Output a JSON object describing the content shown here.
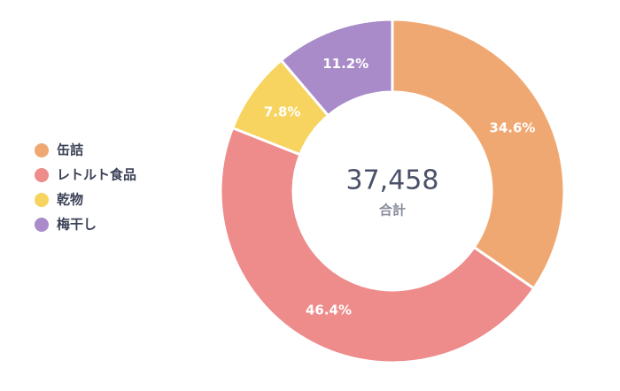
{
  "chart_data": {
    "type": "donut",
    "categories": [
      "缶詰",
      "レトルト食品",
      "乾物",
      "梅干し"
    ],
    "values": [
      34.6,
      46.4,
      7.8,
      11.2
    ],
    "value_labels": [
      "34.6%",
      "46.4%",
      "7.8%",
      "11.2%"
    ],
    "colors": [
      "#f0a872",
      "#ee8b8b",
      "#f7d460",
      "#a98bc9"
    ],
    "center_value": "37,458",
    "center_label": "合計",
    "legend": "left"
  }
}
